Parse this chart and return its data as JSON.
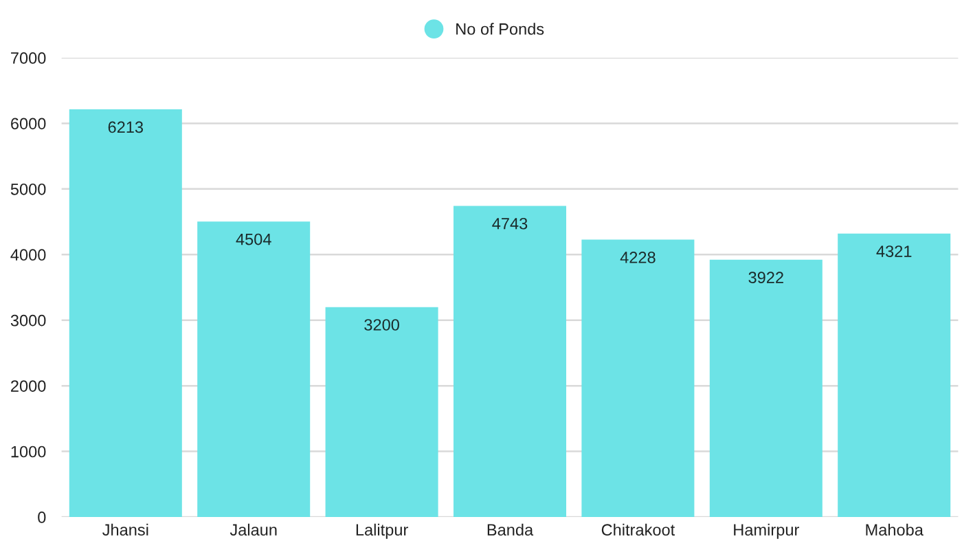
{
  "chart_data": {
    "type": "bar",
    "categories": [
      "Jhansi",
      "Jalaun",
      "Lalitpur",
      "Banda",
      "Chitrakoot",
      "Hamirpur",
      "Mahoba"
    ],
    "series": [
      {
        "name": "No of Ponds",
        "color": "#6ce3e6",
        "values": [
          6213,
          4504,
          3200,
          4743,
          4228,
          3922,
          4321
        ]
      }
    ],
    "ylim": [
      0,
      7000
    ],
    "yticks": [
      0,
      1000,
      2000,
      3000,
      4000,
      5000,
      6000,
      7000
    ],
    "grid": "y",
    "legend": "top",
    "data_labels": true
  }
}
